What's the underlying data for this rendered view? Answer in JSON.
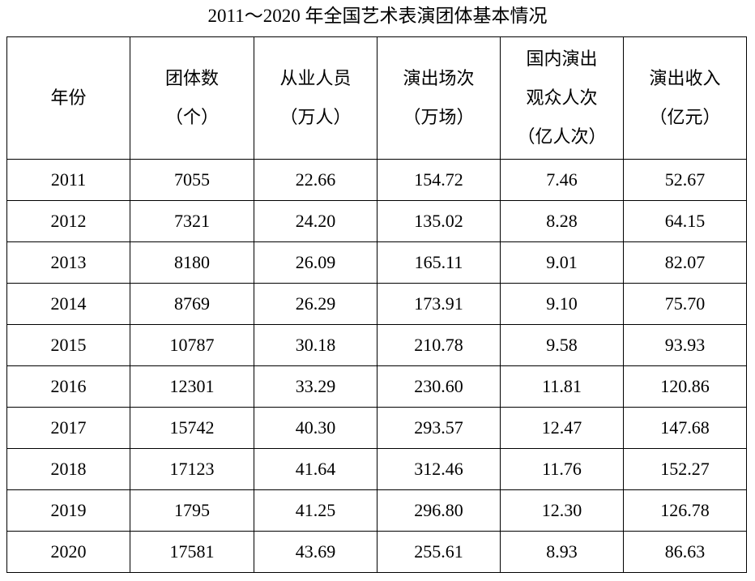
{
  "title": "2011～2020 年全国艺术表演团体基本情况",
  "table": {
    "header": [
      [
        "年份"
      ],
      [
        "团体数",
        "（个）"
      ],
      [
        "从业人员",
        "（万人）"
      ],
      [
        "演出场次",
        "（万场）"
      ],
      [
        "国内演出",
        "观众人次",
        "（亿人次）"
      ],
      [
        "演出收入",
        "（亿元）"
      ]
    ],
    "rows": [
      [
        "2011",
        "7055",
        "22.66",
        "154.72",
        "7.46",
        "52.67"
      ],
      [
        "2012",
        "7321",
        "24.20",
        "135.02",
        "8.28",
        "64.15"
      ],
      [
        "2013",
        "8180",
        "26.09",
        "165.11",
        "9.01",
        "82.07"
      ],
      [
        "2014",
        "8769",
        "26.29",
        "173.91",
        "9.10",
        "75.70"
      ],
      [
        "2015",
        "10787",
        "30.18",
        "210.78",
        "9.58",
        "93.93"
      ],
      [
        "2016",
        "12301",
        "33.29",
        "230.60",
        "11.81",
        "120.86"
      ],
      [
        "2017",
        "15742",
        "40.30",
        "293.57",
        "12.47",
        "147.68"
      ],
      [
        "2018",
        "17123",
        "41.64",
        "312.46",
        "11.76",
        "152.27"
      ],
      [
        "2019",
        "1795",
        "41.25",
        "296.80",
        "12.30",
        "126.78"
      ],
      [
        "2020",
        "17581",
        "43.69",
        "255.61",
        "8.93",
        "86.63"
      ]
    ]
  }
}
